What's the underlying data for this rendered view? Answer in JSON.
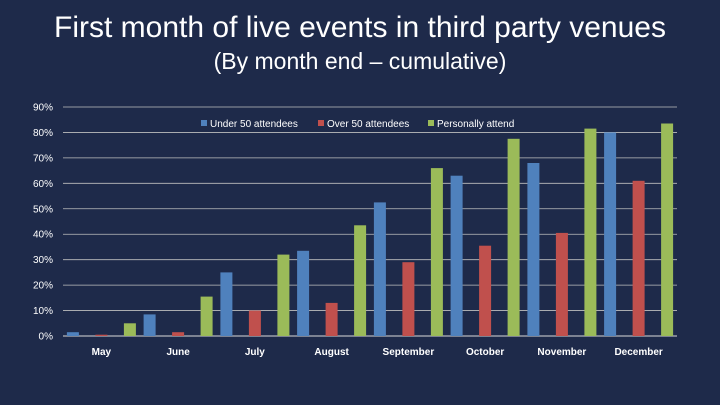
{
  "slide": {
    "title": "First month of live events in third party venues",
    "subtitle": "(By month end – cumulative)"
  },
  "chart_data": {
    "type": "bar",
    "categories": [
      "May",
      "June",
      "July",
      "August",
      "September",
      "October",
      "November",
      "December"
    ],
    "series": [
      {
        "name": "Under 50 attendees",
        "color": "#4f81bd",
        "values": [
          1.5,
          8.5,
          25,
          33.5,
          52.5,
          63,
          68,
          80
        ]
      },
      {
        "name": "Over 50 attendees",
        "color": "#c0504d",
        "values": [
          0.5,
          1.5,
          10,
          13,
          29,
          35.5,
          40.5,
          61
        ]
      },
      {
        "name": "Personally attend",
        "color": "#9bbb59",
        "values": [
          5,
          15.5,
          32,
          43.5,
          66,
          77.5,
          81.5,
          83.5
        ]
      }
    ],
    "yticks": [
      "0%",
      "10%",
      "20%",
      "30%",
      "40%",
      "50%",
      "60%",
      "70%",
      "80%",
      "90%"
    ],
    "ylim": [
      0,
      90
    ],
    "grid": true,
    "legend_position": "top-center",
    "title": "",
    "xlabel": "",
    "ylabel": ""
  }
}
